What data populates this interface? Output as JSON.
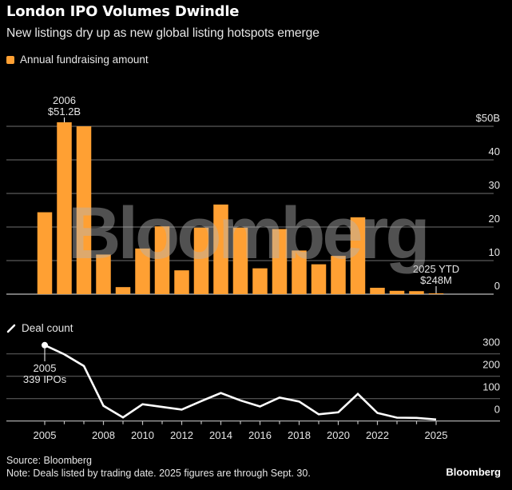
{
  "header": {
    "title": "London IPO Volumes Dwindle",
    "subtitle": "New listings dry up as new global listing hotspots emerge"
  },
  "watermark": "Bloomberg",
  "footer": {
    "source": "Source: Bloomberg",
    "note": "Note: Deals listed by trading date. 2025 figures are through Sept. 30.",
    "brand": "Bloomberg"
  },
  "colors": {
    "bar": "#FFA033",
    "line": "#FFFFFF",
    "grid": "#5a5a5a",
    "baseline": "#bdbdbd",
    "text": "#e6e6e6"
  },
  "chart_data": [
    {
      "type": "bar",
      "title": "Annual fundraising amount",
      "legend": "Annual fundraising amount",
      "legend_position": "top-left",
      "categories": [
        2005,
        2006,
        2007,
        2008,
        2009,
        2010,
        2011,
        2012,
        2013,
        2014,
        2015,
        2016,
        2017,
        2018,
        2019,
        2020,
        2021,
        2022,
        2023,
        2024,
        2025
      ],
      "values": [
        24.4,
        51.2,
        50.0,
        11.8,
        2.1,
        13.6,
        20.2,
        7.1,
        19.8,
        26.7,
        19.8,
        7.7,
        19.4,
        13.0,
        8.9,
        11.4,
        22.9,
        1.9,
        1.0,
        0.9,
        0.248
      ],
      "unit": "USD billions",
      "ylim": [
        0,
        50
      ],
      "yticks": [
        0,
        10,
        20,
        30,
        40,
        50
      ],
      "ytick_labels": [
        "0",
        "10",
        "20",
        "30",
        "40",
        "$50B"
      ],
      "y_axis_side": "right",
      "grid": true,
      "annotations": [
        {
          "category": 2006,
          "lines": [
            "2006",
            "$51.2B"
          ]
        },
        {
          "category": 2025,
          "lines": [
            "2025 YTD",
            "$248M"
          ]
        }
      ]
    },
    {
      "type": "line",
      "title": "Deal count",
      "legend": "Deal count",
      "legend_position": "top-left",
      "x": [
        2005,
        2006,
        2007,
        2008,
        2009,
        2010,
        2011,
        2012,
        2013,
        2014,
        2015,
        2016,
        2017,
        2018,
        2019,
        2020,
        2021,
        2022,
        2023,
        2024,
        2025
      ],
      "values": [
        339,
        298,
        246,
        68,
        16,
        75,
        63,
        51,
        89,
        125,
        92,
        65,
        105,
        87,
        30,
        39,
        121,
        36,
        15,
        14,
        7
      ],
      "ylim": [
        0,
        300
      ],
      "yticks": [
        0,
        100,
        200,
        300
      ],
      "ytick_labels": [
        "0",
        "100",
        "200",
        "300"
      ],
      "y_axis_side": "right",
      "xtick_labels": [
        "2005",
        "2008",
        "2010",
        "2012",
        "2014",
        "2016",
        "2018",
        "2020",
        "2022",
        "2025"
      ],
      "grid": true,
      "annotations": [
        {
          "x": 2005,
          "lines": [
            "2005",
            "339 IPOs"
          ]
        }
      ]
    }
  ]
}
